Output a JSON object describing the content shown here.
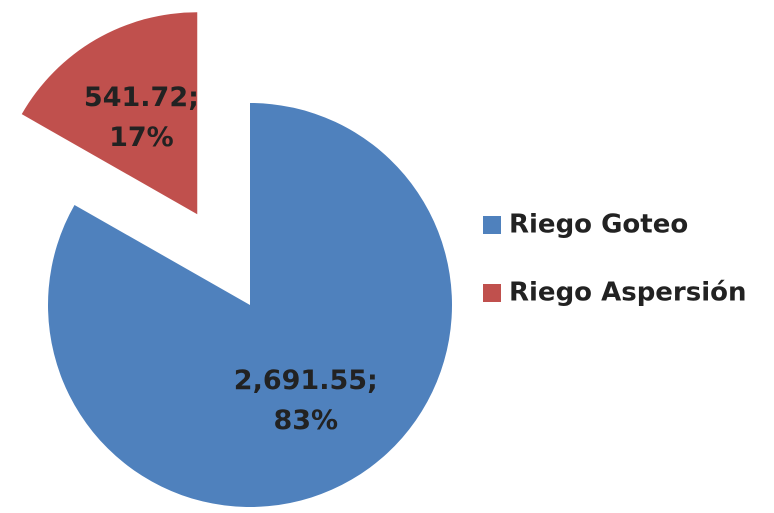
{
  "chart_data": {
    "type": "pie",
    "categories": [
      "Riego Goteo",
      "Riego Aspersión"
    ],
    "values": [
      2691.55,
      541.72
    ],
    "value_labels": [
      "2,691.55;",
      "541.72;"
    ],
    "percentages": [
      83,
      17
    ],
    "percent_labels": [
      "83%",
      "17%"
    ],
    "colors": [
      "#4f81bd",
      "#c0504d"
    ],
    "explode": [
      false,
      true
    ],
    "legend": "right"
  }
}
